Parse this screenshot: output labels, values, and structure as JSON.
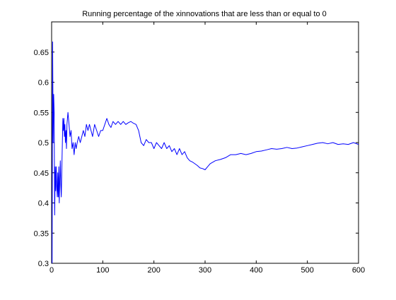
{
  "chart_data": {
    "type": "line",
    "title": "Running percentage of the xinnovations that are less than or equal to 0",
    "xlabel": "",
    "ylabel": "",
    "xlim": [
      0,
      600
    ],
    "ylim": [
      0.3,
      0.7
    ],
    "xticks": [
      0,
      100,
      200,
      300,
      400,
      500,
      600
    ],
    "yticks": [
      0.3,
      0.35,
      0.4,
      0.45,
      0.5,
      0.55,
      0.6,
      0.65
    ],
    "xtick_labels": [
      "0",
      "100",
      "200",
      "300",
      "400",
      "500",
      "600"
    ],
    "ytick_labels": [
      "0.3",
      "0.35",
      "0.4",
      "0.45",
      "0.5",
      "0.55",
      "0.6",
      "0.65"
    ],
    "grid": false,
    "series": [
      {
        "color": "#0000ff",
        "x": [
          1,
          2,
          3,
          4,
          5,
          6,
          7,
          8,
          9,
          10,
          11,
          12,
          13,
          14,
          15,
          16,
          17,
          18,
          19,
          20,
          21,
          22,
          23,
          24,
          25,
          26,
          27,
          28,
          29,
          30,
          32,
          34,
          36,
          38,
          40,
          42,
          44,
          46,
          48,
          50,
          53,
          56,
          59,
          62,
          65,
          68,
          71,
          74,
          77,
          80,
          84,
          88,
          92,
          96,
          100,
          104,
          108,
          112,
          116,
          120,
          125,
          130,
          135,
          140,
          145,
          150,
          155,
          160,
          165,
          170,
          175,
          180,
          185,
          190,
          195,
          200,
          205,
          210,
          215,
          220,
          225,
          230,
          235,
          240,
          245,
          250,
          255,
          260,
          265,
          270,
          275,
          280,
          285,
          290,
          295,
          300,
          305,
          310,
          320,
          330,
          340,
          350,
          360,
          370,
          380,
          390,
          400,
          410,
          420,
          430,
          440,
          450,
          460,
          470,
          480,
          490,
          500,
          510,
          520,
          530,
          540,
          550,
          560,
          570,
          580,
          590,
          600
        ],
        "values": [
          0.3,
          0.667,
          0.5,
          0.58,
          0.55,
          0.38,
          0.46,
          0.42,
          0.46,
          0.43,
          0.41,
          0.45,
          0.41,
          0.46,
          0.4,
          0.44,
          0.47,
          0.43,
          0.41,
          0.46,
          0.5,
          0.54,
          0.52,
          0.54,
          0.51,
          0.53,
          0.5,
          0.52,
          0.49,
          0.53,
          0.55,
          0.53,
          0.51,
          0.52,
          0.49,
          0.5,
          0.48,
          0.5,
          0.49,
          0.5,
          0.51,
          0.5,
          0.51,
          0.52,
          0.51,
          0.53,
          0.52,
          0.53,
          0.52,
          0.51,
          0.53,
          0.52,
          0.51,
          0.52,
          0.52,
          0.53,
          0.54,
          0.53,
          0.525,
          0.535,
          0.53,
          0.535,
          0.53,
          0.535,
          0.53,
          0.533,
          0.535,
          0.532,
          0.53,
          0.52,
          0.5,
          0.495,
          0.505,
          0.5,
          0.5,
          0.49,
          0.5,
          0.495,
          0.49,
          0.5,
          0.49,
          0.495,
          0.485,
          0.49,
          0.48,
          0.49,
          0.48,
          0.485,
          0.475,
          0.47,
          0.468,
          0.465,
          0.462,
          0.458,
          0.457,
          0.455,
          0.46,
          0.465,
          0.47,
          0.472,
          0.475,
          0.48,
          0.48,
          0.482,
          0.48,
          0.482,
          0.485,
          0.486,
          0.488,
          0.49,
          0.489,
          0.49,
          0.492,
          0.49,
          0.491,
          0.493,
          0.495,
          0.497,
          0.499,
          0.5,
          0.498,
          0.5,
          0.497,
          0.498,
          0.497,
          0.5,
          0.497
        ]
      }
    ]
  }
}
